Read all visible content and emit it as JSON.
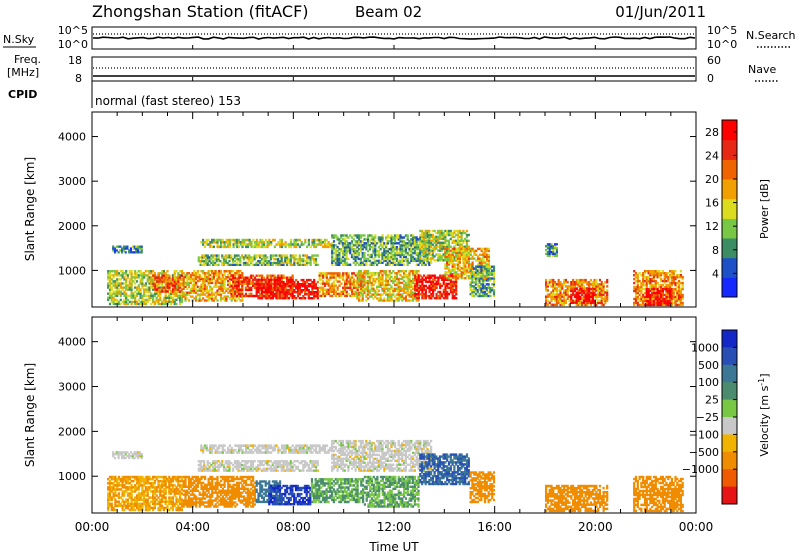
{
  "header": {
    "title": "Zhongshan Station (fitACF)",
    "beam": "Beam 02",
    "date": "01/Jun/2011"
  },
  "params": {
    "nsky_label": "N.Sky",
    "nsky_ticks": [
      "10^5",
      "10^0"
    ],
    "nsearch_label": "N.Search",
    "nsearch_ticks": [
      "10^5",
      "10^0"
    ],
    "freq_label_line1": "Freq.",
    "freq_label_line2": "[MHz]",
    "freq_ticks": [
      "18",
      "8"
    ],
    "nave_label": "Nave",
    "nave_ticks": [
      "60",
      "0"
    ],
    "cpid_label": "CPID",
    "cpid_text": "normal (fast stereo) 153"
  },
  "colors": {
    "power": [
      "#1428ff",
      "#1e50c8",
      "#3c8c64",
      "#78c846",
      "#dcdc1e",
      "#f0a000",
      "#f06400",
      "#e62814",
      "#ff0000"
    ],
    "velocity": [
      "#1428c8",
      "#2850b4",
      "#3c7896",
      "#4b8c6e",
      "#78c846",
      "#c8c8c8",
      "#f0b400",
      "#f08c00",
      "#f05a00",
      "#e61414"
    ]
  },
  "chart_data": [
    {
      "type": "heatmap",
      "title": "",
      "xlabel": "",
      "ylabel": "Slant Range [km]",
      "x_ticks": [
        "00:00",
        "04:00",
        "08:00",
        "12:00",
        "16:00",
        "20:00",
        "00:00"
      ],
      "y_ticks": [
        1000,
        2000,
        3000,
        4000
      ],
      "xlim": [
        0,
        24
      ],
      "ylim": [
        180,
        4550
      ],
      "colorbar": {
        "label": "Power [dB]",
        "ticks": [
          4,
          8,
          12,
          16,
          20,
          24,
          28
        ],
        "range": [
          0,
          30
        ]
      },
      "regions": [
        {
          "t0": 0.6,
          "t1": 3.6,
          "r0": 220,
          "r1": 1000,
          "value": 14
        },
        {
          "t0": 0.8,
          "t1": 2.0,
          "r0": 1380,
          "r1": 1550,
          "value": 8
        },
        {
          "t0": 2.4,
          "t1": 3.6,
          "r0": 500,
          "r1": 900,
          "value": 22
        },
        {
          "t0": 3.6,
          "t1": 6.0,
          "r0": 300,
          "r1": 1000,
          "value": 18
        },
        {
          "t0": 4.2,
          "t1": 9.0,
          "r0": 1100,
          "r1": 1350,
          "value": 12
        },
        {
          "t0": 4.3,
          "t1": 9.5,
          "r0": 1500,
          "r1": 1700,
          "value": 14
        },
        {
          "t0": 5.5,
          "t1": 8.0,
          "r0": 400,
          "r1": 900,
          "value": 24
        },
        {
          "t0": 6.5,
          "t1": 9.0,
          "r0": 350,
          "r1": 800,
          "value": 28
        },
        {
          "t0": 9.0,
          "t1": 10.8,
          "r0": 400,
          "r1": 950,
          "value": 20
        },
        {
          "t0": 9.5,
          "t1": 13.5,
          "r0": 1100,
          "r1": 1800,
          "value": 10
        },
        {
          "t0": 10.5,
          "t1": 13.0,
          "r0": 300,
          "r1": 1000,
          "value": 16
        },
        {
          "t0": 12.8,
          "t1": 14.5,
          "r0": 350,
          "r1": 900,
          "value": 26
        },
        {
          "t0": 13.0,
          "t1": 15.0,
          "r0": 1200,
          "r1": 1900,
          "value": 14
        },
        {
          "t0": 14.0,
          "t1": 15.8,
          "r0": 800,
          "r1": 1500,
          "value": 18
        },
        {
          "t0": 15.0,
          "t1": 16.0,
          "r0": 400,
          "r1": 1100,
          "value": 10
        },
        {
          "t0": 18.0,
          "t1": 18.5,
          "r0": 1300,
          "r1": 1600,
          "value": 8
        },
        {
          "t0": 18.0,
          "t1": 20.5,
          "r0": 200,
          "r1": 800,
          "value": 20
        },
        {
          "t0": 19.0,
          "t1": 20.0,
          "r0": 250,
          "r1": 600,
          "value": 28
        },
        {
          "t0": 21.5,
          "t1": 23.5,
          "r0": 200,
          "r1": 1000,
          "value": 20
        },
        {
          "t0": 22.0,
          "t1": 23.0,
          "r0": 200,
          "r1": 600,
          "value": 28
        }
      ]
    },
    {
      "type": "heatmap",
      "title": "",
      "xlabel": "Time UT",
      "ylabel": "Slant Range [km]",
      "x_ticks": [
        "00:00",
        "04:00",
        "08:00",
        "12:00",
        "16:00",
        "20:00",
        "00:00"
      ],
      "y_ticks": [
        1000,
        2000,
        3000,
        4000
      ],
      "xlim": [
        0,
        24
      ],
      "ylim": [
        180,
        4550
      ],
      "colorbar": {
        "label": "Velocity [m s",
        "label_sup": "-1",
        "label_end": "]",
        "ticks": [
          "1000",
          "500",
          "100",
          "25",
          "−25",
          "−100",
          "−500",
          "−1000"
        ]
      },
      "regions": [
        {
          "t0": 0.6,
          "t1": 3.6,
          "r0": 220,
          "r1": 1000,
          "value": -100
        },
        {
          "t0": 0.8,
          "t1": 2.0,
          "r0": 1380,
          "r1": 1550,
          "value": 0
        },
        {
          "t0": 3.6,
          "t1": 6.5,
          "r0": 300,
          "r1": 1000,
          "value": -300
        },
        {
          "t0": 4.2,
          "t1": 9.0,
          "r0": 1100,
          "r1": 1350,
          "value": 0
        },
        {
          "t0": 4.3,
          "t1": 9.5,
          "r0": 1500,
          "r1": 1700,
          "value": 0
        },
        {
          "t0": 6.5,
          "t1": 7.5,
          "r0": 400,
          "r1": 900,
          "value": 300
        },
        {
          "t0": 7.0,
          "t1": 8.7,
          "r0": 350,
          "r1": 800,
          "value": 1000
        },
        {
          "t0": 8.7,
          "t1": 10.8,
          "r0": 400,
          "r1": 950,
          "value": 60
        },
        {
          "t0": 9.5,
          "t1": 13.5,
          "r0": 1100,
          "r1": 1800,
          "value": 0
        },
        {
          "t0": 10.8,
          "t1": 13.0,
          "r0": 300,
          "r1": 1000,
          "value": 60
        },
        {
          "t0": 13.0,
          "t1": 15.0,
          "r0": 800,
          "r1": 1500,
          "value": 500
        },
        {
          "t0": 15.0,
          "t1": 16.0,
          "r0": 400,
          "r1": 1100,
          "value": -300
        },
        {
          "t0": 18.0,
          "t1": 20.5,
          "r0": 200,
          "r1": 800,
          "value": -300
        },
        {
          "t0": 21.5,
          "t1": 23.5,
          "r0": 200,
          "r1": 1000,
          "value": -300
        }
      ]
    }
  ],
  "x_axis_title": "Time UT"
}
